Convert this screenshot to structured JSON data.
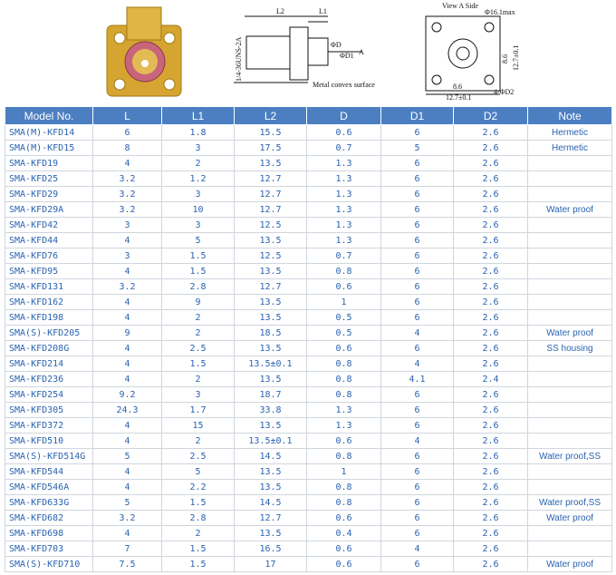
{
  "drawings": {
    "side": {
      "l2": "L2",
      "l1": "L1",
      "thread": "1/4-36UNS-2A",
      "d": "ΦD",
      "d1": "ΦD1",
      "arrow": "A",
      "surface": "Metal convex surface"
    },
    "front": {
      "view": "View A Side",
      "dia": "Φ16.1max",
      "inner": "8.6",
      "outer": "12.7±0.1",
      "holes": "4-ΦD2"
    }
  },
  "table": {
    "header": [
      "Model No.",
      "L",
      "L1",
      "L2",
      "D",
      "D1",
      "D2",
      "Note"
    ],
    "rows": [
      {
        "model": "SMA(M)-KFD14",
        "L": "6",
        "L1": "1.8",
        "L2": "15.5",
        "D": "0.6",
        "D1": "6",
        "D2": "2.6",
        "note": "Hermetic"
      },
      {
        "model": "SMA(M)-KFD15",
        "L": "8",
        "L1": "3",
        "L2": "17.5",
        "D": "0.7",
        "D1": "5",
        "D2": "2.6",
        "note": "Hermetic"
      },
      {
        "model": "SMA-KFD19",
        "L": "4",
        "L1": "2",
        "L2": "13.5",
        "D": "1.3",
        "D1": "6",
        "D2": "2.6"
      },
      {
        "model": "SMA-KFD25",
        "L": "3.2",
        "L1": "1.2",
        "L2": "12.7",
        "D": "1.3",
        "D1": "6",
        "D2": "2.6"
      },
      {
        "model": "SMA-KFD29",
        "L": "3.2",
        "L1": "3",
        "L2": "12.7",
        "D": "1.3",
        "D1": "6",
        "D2": "2.6"
      },
      {
        "model": "SMA-KFD29A",
        "L": "3.2",
        "L1": "10",
        "L2": "12.7",
        "D": "1.3",
        "D1": "6",
        "D2": "2.6",
        "note": "Water proof"
      },
      {
        "model": "SMA-KFD42",
        "L": "3",
        "L1": "3",
        "L2": "12.5",
        "D": "1.3",
        "D1": "6",
        "D2": "2.6"
      },
      {
        "model": "SMA-KFD44",
        "L": "4",
        "L1": "5",
        "L2": "13.5",
        "D": "1.3",
        "D1": "6",
        "D2": "2.6"
      },
      {
        "model": "SMA-KFD76",
        "L": "3",
        "L1": "1.5",
        "L2": "12.5",
        "D": "0.7",
        "D1": "6",
        "D2": "2.6"
      },
      {
        "model": "SMA-KFD95",
        "L": "4",
        "L1": "1.5",
        "L2": "13.5",
        "D": "0.8",
        "D1": "6",
        "D2": "2.6"
      },
      {
        "model": "SMA-KFD131",
        "L": "3.2",
        "L1": "2.8",
        "L2": "12.7",
        "D": "0.6",
        "D1": "6",
        "D2": "2.6"
      },
      {
        "model": "SMA-KFD162",
        "L": "4",
        "L1": "9",
        "L2": "13.5",
        "D": "1",
        "D1": "6",
        "D2": "2.6"
      },
      {
        "model": "SMA-KFD198",
        "L": "4",
        "L1": "2",
        "L2": "13.5",
        "D": "0.5",
        "D1": "6",
        "D2": "2.6"
      },
      {
        "model": "SMA(S)-KFD205",
        "L": "9",
        "L1": "2",
        "L2": "18.5",
        "D": "0.5",
        "D1": "4",
        "D2": "2.6",
        "note": "Water proof"
      },
      {
        "model": "SMA-KFD208G",
        "L": "4",
        "L1": "2.5",
        "L2": "13.5",
        "D": "0.6",
        "D1": "6",
        "D2": "2.6",
        "note": "SS housing"
      },
      {
        "model": "SMA-KFD214",
        "L": "4",
        "L1": "1.5",
        "L2": "13.5±0.1",
        "D": "0.8",
        "D1": "4",
        "D2": "2.6"
      },
      {
        "model": "SMA-KFD236",
        "L": "4",
        "L1": "2",
        "L2": "13.5",
        "D": "0.8",
        "D1": "4.1",
        "D2": "2.4"
      },
      {
        "model": "SMA-KFD254",
        "L": "9.2",
        "L1": "3",
        "L2": "18.7",
        "D": "0.8",
        "D1": "6",
        "D2": "2.6"
      },
      {
        "model": "SMA-KFD305",
        "L": "24.3",
        "L1": "1.7",
        "L2": "33.8",
        "D": "1.3",
        "D1": "6",
        "D2": "2.6"
      },
      {
        "model": "SMA-KFD372",
        "L": "4",
        "L1": "15",
        "L2": "13.5",
        "D": "1.3",
        "D1": "6",
        "D2": "2.6"
      },
      {
        "model": "SMA-KFD510",
        "L": "4",
        "L1": "2",
        "L2": "13.5±0.1",
        "D": "0.6",
        "D1": "4",
        "D2": "2.6"
      },
      {
        "model": "SMA(S)-KFD514G",
        "L": "5",
        "L1": "2.5",
        "L2": "14.5",
        "D": "0.8",
        "D1": "6",
        "D2": "2.6",
        "note": "Water proof,SS"
      },
      {
        "model": "SMA-KFD544",
        "L": "4",
        "L1": "5",
        "L2": "13.5",
        "D": "1",
        "D1": "6",
        "D2": "2.6"
      },
      {
        "model": "SMA-KFD546A",
        "L": "4",
        "L1": "2.2",
        "L2": "13.5",
        "D": "0.8",
        "D1": "6",
        "D2": "2.6"
      },
      {
        "model": "SMA-KFD633G",
        "L": "5",
        "L1": "1.5",
        "L2": "14.5",
        "D": "0.8",
        "D1": "6",
        "D2": "2.6",
        "note": "Water proof,SS"
      },
      {
        "model": "SMA-KFD682",
        "L": "3.2",
        "L1": "2.8",
        "L2": "12.7",
        "D": "0.6",
        "D1": "6",
        "D2": "2.6",
        "note": "Water proof"
      },
      {
        "model": "SMA-KFD698",
        "L": "4",
        "L1": "2",
        "L2": "13.5",
        "D": "0.4",
        "D1": "6",
        "D2": "2.6"
      },
      {
        "model": "SMA-KFD703",
        "L": "7",
        "L1": "1.5",
        "L2": "16.5",
        "D": "0.6",
        "D1": "4",
        "D2": "2.6"
      },
      {
        "model": "SMA(S)-KFD710",
        "L": "7.5",
        "L1": "1.5",
        "L2": "17",
        "D": "0.6",
        "D1": "6",
        "D2": "2.6",
        "note": "Water proof"
      }
    ]
  }
}
